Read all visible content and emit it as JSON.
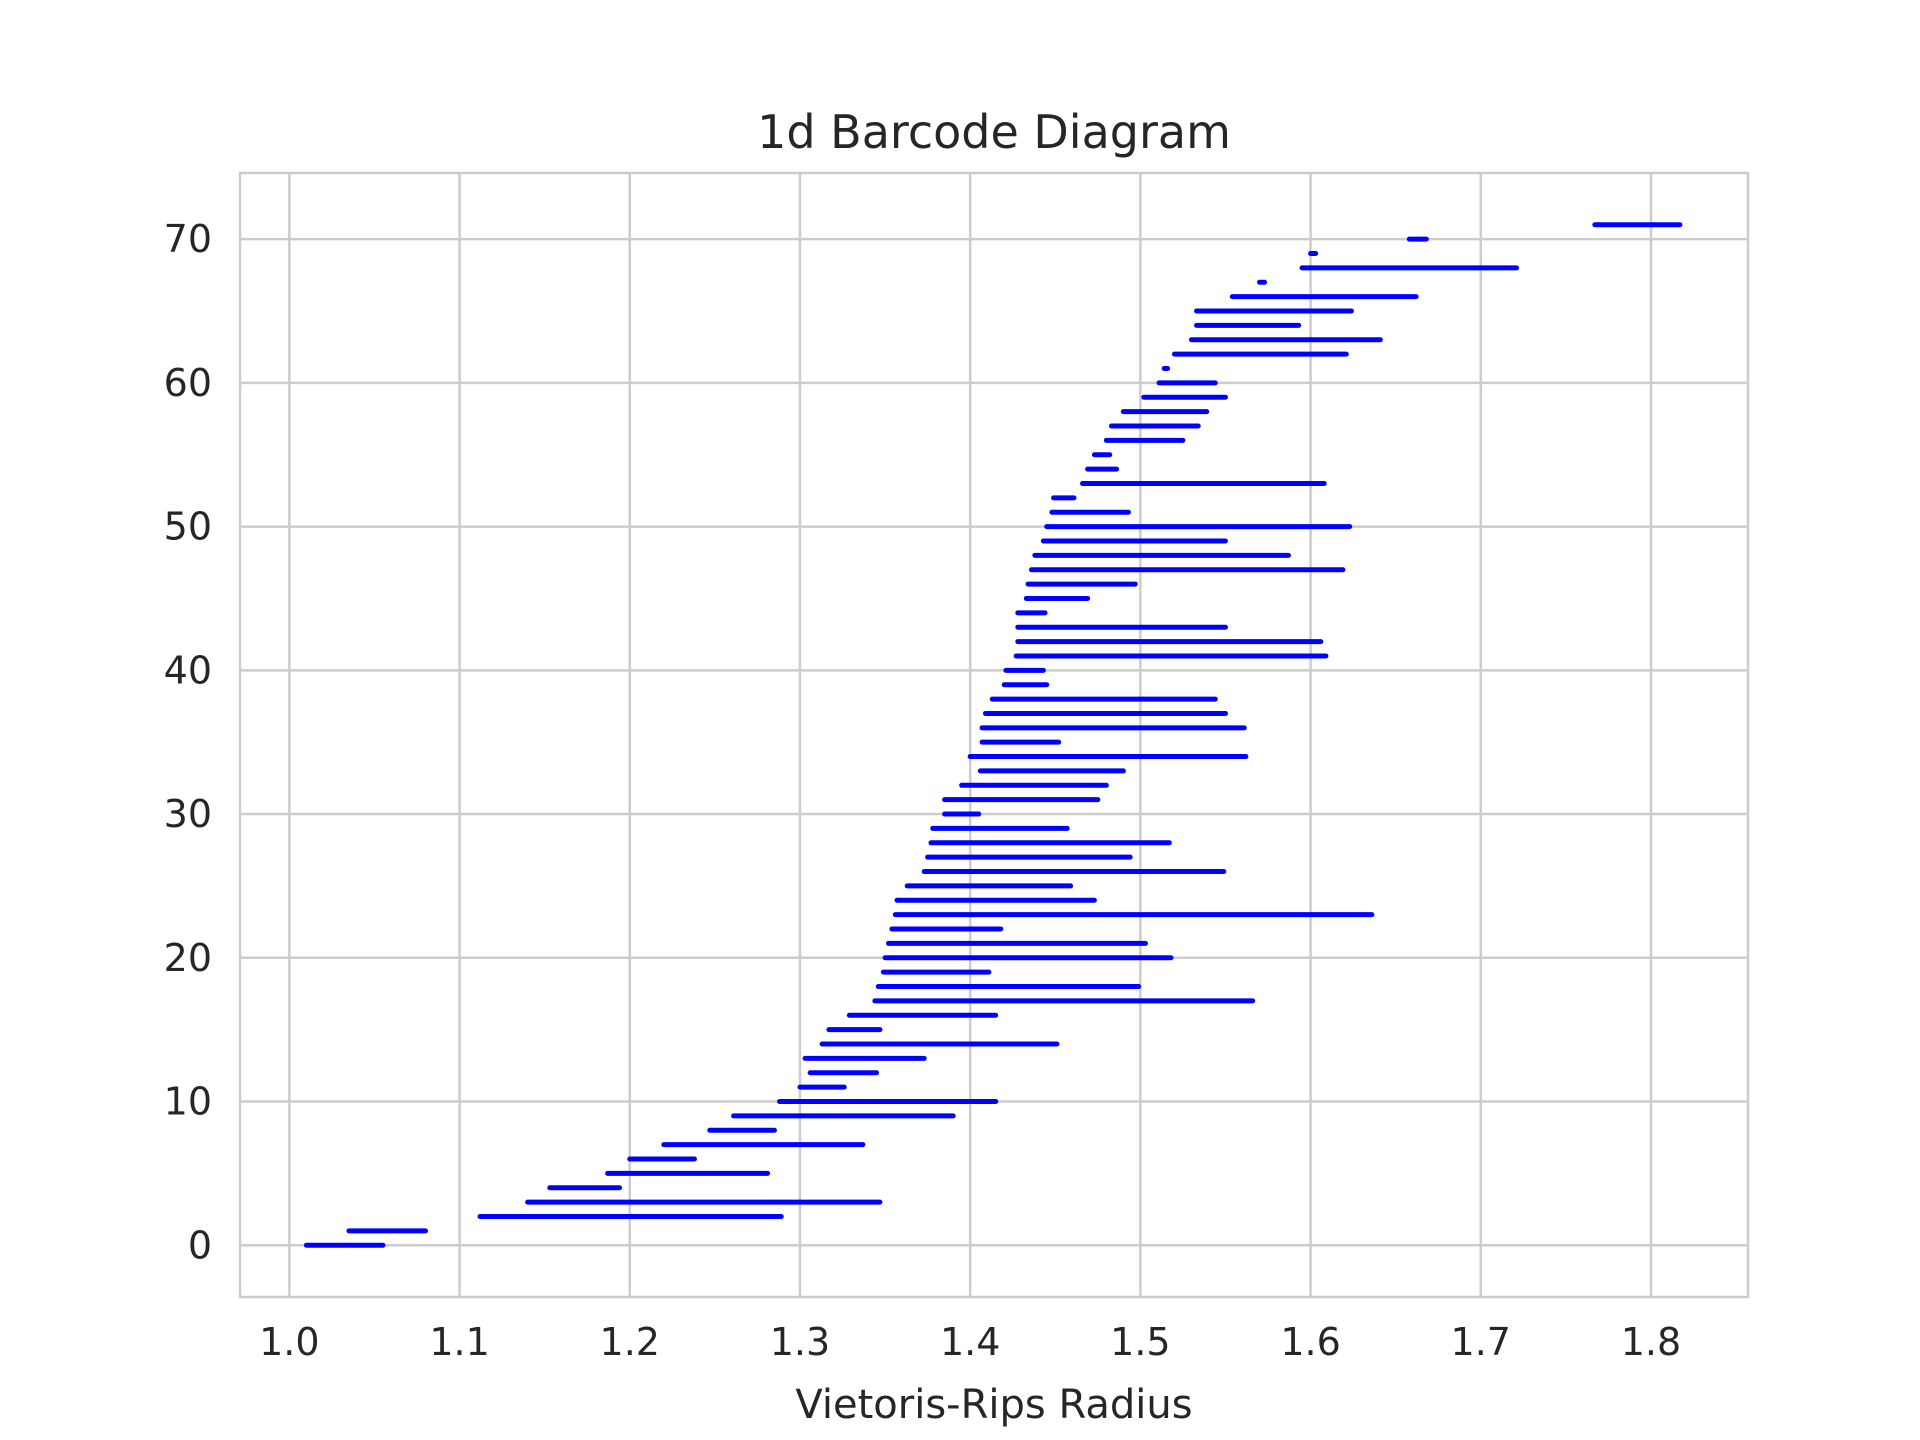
{
  "chart_data": {
    "type": "barcode",
    "title": "1d Barcode Diagram",
    "xlabel": "Vietoris-Rips Radius",
    "ylabel": "",
    "xlim": [
      0.971,
      1.857
    ],
    "ylim": [
      -3.6,
      74.6
    ],
    "xticks": [
      1.0,
      1.1,
      1.2,
      1.3,
      1.4,
      1.5,
      1.6,
      1.7,
      1.8
    ],
    "xtick_labels": [
      "1.0",
      "1.1",
      "1.2",
      "1.3",
      "1.4",
      "1.5",
      "1.6",
      "1.7",
      "1.8"
    ],
    "yticks": [
      0,
      10,
      20,
      30,
      40,
      50,
      60,
      70
    ],
    "ytick_labels": [
      "0",
      "10",
      "20",
      "30",
      "40",
      "50",
      "60",
      "70"
    ],
    "grid": true,
    "color": "#0000ff",
    "intervals": [
      [
        1.01,
        1.055
      ],
      [
        1.035,
        1.08
      ],
      [
        1.112,
        1.289
      ],
      [
        1.14,
        1.347
      ],
      [
        1.153,
        1.194
      ],
      [
        1.187,
        1.281
      ],
      [
        1.2,
        1.238
      ],
      [
        1.22,
        1.337
      ],
      [
        1.247,
        1.285
      ],
      [
        1.261,
        1.39
      ],
      [
        1.288,
        1.415
      ],
      [
        1.3,
        1.326
      ],
      [
        1.306,
        1.345
      ],
      [
        1.303,
        1.373
      ],
      [
        1.313,
        1.451
      ],
      [
        1.317,
        1.347
      ],
      [
        1.329,
        1.415
      ],
      [
        1.344,
        1.566
      ],
      [
        1.346,
        1.499
      ],
      [
        1.349,
        1.411
      ],
      [
        1.35,
        1.518
      ],
      [
        1.352,
        1.503
      ],
      [
        1.354,
        1.418
      ],
      [
        1.356,
        1.636
      ],
      [
        1.357,
        1.473
      ],
      [
        1.363,
        1.459
      ],
      [
        1.373,
        1.549
      ],
      [
        1.375,
        1.494
      ],
      [
        1.377,
        1.517
      ],
      [
        1.378,
        1.457
      ],
      [
        1.385,
        1.405
      ],
      [
        1.385,
        1.475
      ],
      [
        1.395,
        1.48
      ],
      [
        1.406,
        1.49
      ],
      [
        1.4,
        1.562
      ],
      [
        1.407,
        1.452
      ],
      [
        1.407,
        1.561
      ],
      [
        1.409,
        1.55
      ],
      [
        1.413,
        1.544
      ],
      [
        1.42,
        1.445
      ],
      [
        1.421,
        1.443
      ],
      [
        1.427,
        1.609
      ],
      [
        1.428,
        1.606
      ],
      [
        1.428,
        1.55
      ],
      [
        1.428,
        1.444
      ],
      [
        1.433,
        1.469
      ],
      [
        1.434,
        1.497
      ],
      [
        1.436,
        1.619
      ],
      [
        1.438,
        1.587
      ],
      [
        1.443,
        1.55
      ],
      [
        1.445,
        1.623
      ],
      [
        1.448,
        1.493
      ],
      [
        1.449,
        1.461
      ],
      [
        1.466,
        1.608
      ],
      [
        1.469,
        1.486
      ],
      [
        1.473,
        1.482
      ],
      [
        1.48,
        1.525
      ],
      [
        1.483,
        1.534
      ],
      [
        1.49,
        1.539
      ],
      [
        1.502,
        1.55
      ],
      [
        1.511,
        1.544
      ],
      [
        1.514,
        1.516
      ],
      [
        1.52,
        1.621
      ],
      [
        1.53,
        1.641
      ],
      [
        1.533,
        1.593
      ],
      [
        1.533,
        1.624
      ],
      [
        1.554,
        1.662
      ],
      [
        1.57,
        1.573
      ],
      [
        1.595,
        1.721
      ],
      [
        1.6,
        1.603
      ],
      [
        1.658,
        1.668
      ],
      [
        1.767,
        1.817
      ]
    ]
  }
}
